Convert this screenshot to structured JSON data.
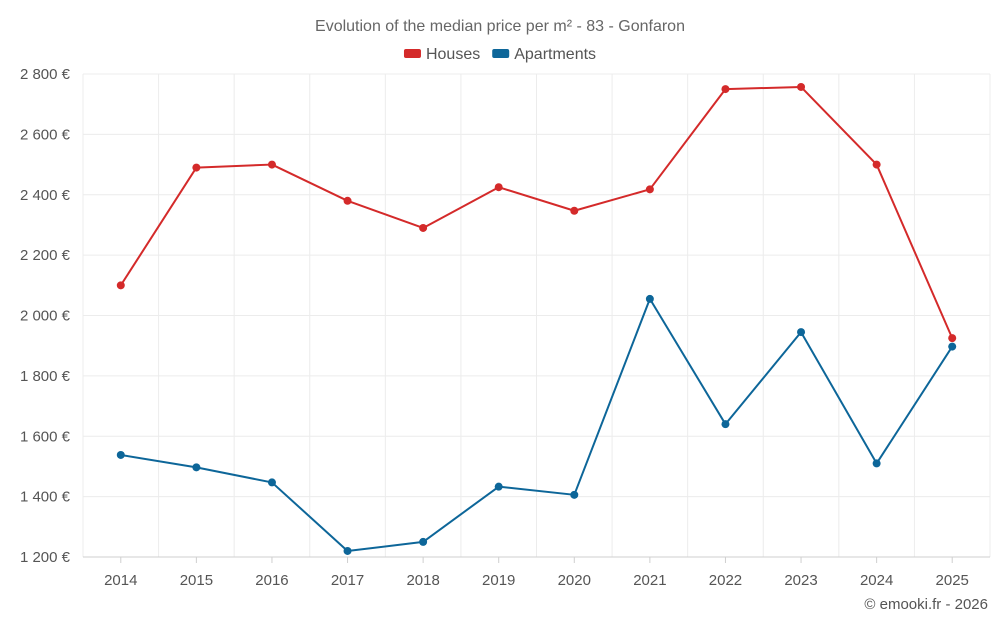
{
  "chart_data": {
    "type": "line",
    "title": "Evolution of the median price per m² - 83 - Gonfaron",
    "categories": [
      "2014",
      "2015",
      "2016",
      "2017",
      "2018",
      "2019",
      "2020",
      "2021",
      "2022",
      "2023",
      "2024",
      "2025"
    ],
    "series": [
      {
        "name": "Houses",
        "color": "#d42a2a",
        "values": [
          2100,
          2490,
          2500,
          2380,
          2290,
          2425,
          2347,
          2418,
          2750,
          2757,
          2500,
          1925
        ]
      },
      {
        "name": "Apartments",
        "color": "#0d6699",
        "values": [
          1538,
          1497,
          1447,
          1220,
          1250,
          1433,
          1406,
          2055,
          1640,
          1945,
          1510,
          1897
        ]
      }
    ],
    "ylim": [
      1200,
      2800
    ],
    "yticks": [
      1200,
      1400,
      1600,
      1800,
      2000,
      2200,
      2400,
      2600,
      2800
    ],
    "ytick_labels": [
      "1 200 €",
      "1 400 €",
      "1 600 €",
      "1 800 €",
      "2 000 €",
      "2 200 €",
      "2 400 €",
      "2 600 €",
      "2 800 €"
    ],
    "xlabel": "",
    "ylabel": "",
    "grid": true,
    "legend_position": "top-center"
  },
  "credit": "© emooki.fr - 2026"
}
